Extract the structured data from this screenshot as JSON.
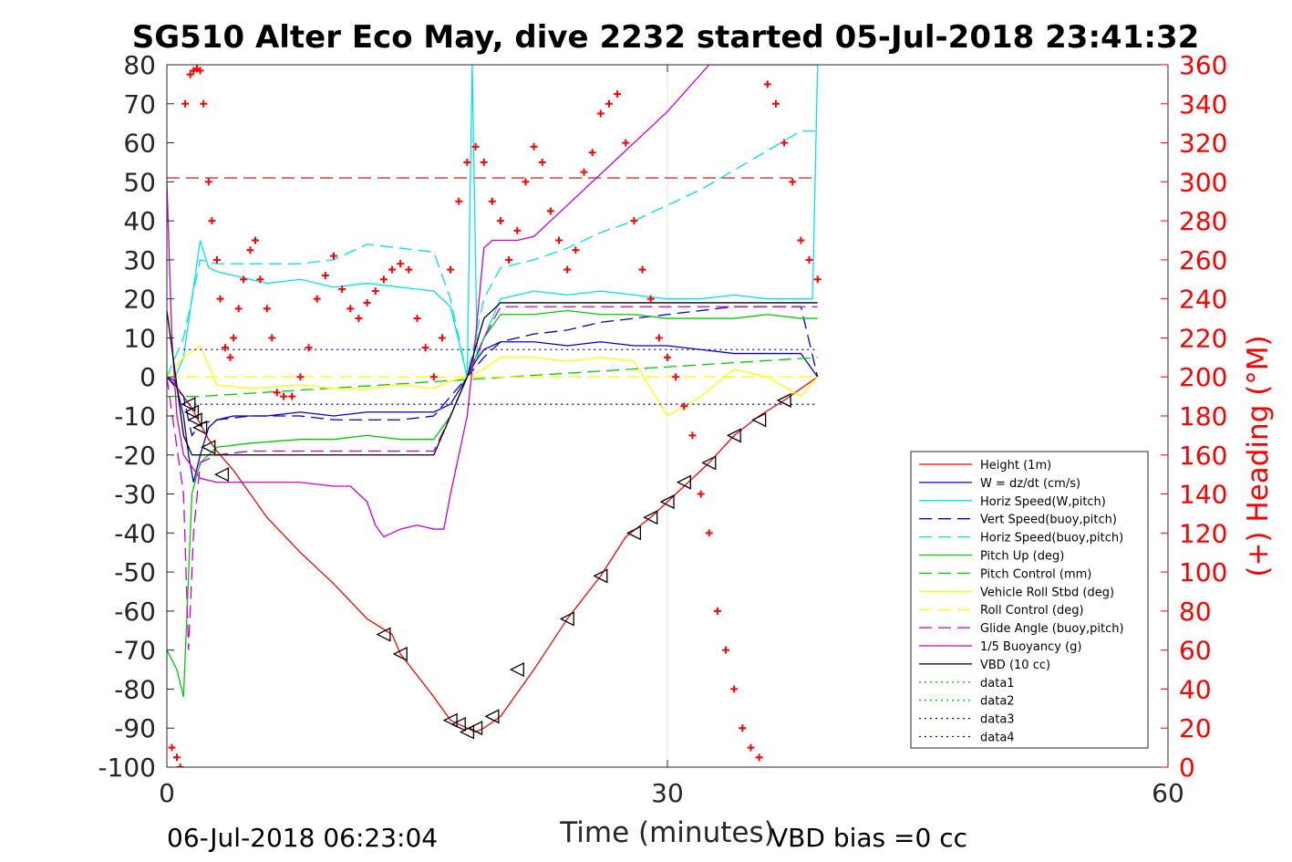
{
  "chart_data": {
    "type": "line",
    "title": "SG510 Alter Eco May, dive 2232 started 05-Jul-2018 23:41:32",
    "xlabel": "Time (minutes)",
    "ylabel_right": "(+) Heading (°M)",
    "xlim": [
      0,
      60
    ],
    "ylim": [
      -100,
      80
    ],
    "ylim_right": [
      0,
      360
    ],
    "x_ticks": [
      "0",
      "30",
      "60"
    ],
    "y_ticks": [
      "80",
      "70",
      "60",
      "50",
      "40",
      "30",
      "20",
      "10",
      "0",
      "-10",
      "-20",
      "-30",
      "-40",
      "-50",
      "-60",
      "-70",
      "-80",
      "-90",
      "-100"
    ],
    "y_ticks_right": [
      "360",
      "340",
      "320",
      "300",
      "280",
      "260",
      "240",
      "220",
      "200",
      "180",
      "160",
      "140",
      "120",
      "100",
      "80",
      "60",
      "40",
      "20",
      "0"
    ],
    "grid": "x-only",
    "legend_position": "bottom-right",
    "footer_left": "06-Jul-2018 06:23:04",
    "footer_right": "VBD bias =0 cc",
    "series": [
      {
        "name": "Height (1m)",
        "color": "#ff0000",
        "style": "solid",
        "x": [
          0,
          0.5,
          1,
          1.5,
          2,
          2.5,
          3,
          4,
          5,
          6,
          8,
          10,
          12,
          13.5,
          14,
          16,
          17,
          17.5,
          18,
          18.5,
          19,
          20,
          21,
          22,
          24,
          26,
          27.5,
          29,
          30,
          31,
          32.5,
          34,
          35.5,
          37,
          39
        ],
        "y": [
          0,
          -2,
          -5,
          -8,
          -12,
          -16,
          -19,
          -24,
          -30,
          -36,
          -45,
          -53,
          -62,
          -66,
          -71,
          -82,
          -88,
          -89,
          -90,
          -91,
          -90,
          -87,
          -81,
          -75,
          -62,
          -51,
          -41,
          -36,
          -32,
          -28,
          -22,
          -15,
          -10,
          -6,
          0
        ]
      },
      {
        "name": "W = dz/dt (cm/s)",
        "color": "#0000cc",
        "style": "solid",
        "x": [
          0,
          0.5,
          1,
          1.3,
          1.6,
          2,
          2.5,
          3,
          4,
          6,
          8,
          10,
          12,
          14,
          16,
          17,
          18,
          18.5,
          19,
          20,
          22,
          24,
          26,
          28,
          30,
          32,
          34,
          36,
          38,
          39
        ],
        "y": [
          0,
          -1,
          -10,
          -20,
          -27,
          -20,
          -13,
          -11,
          -10,
          -10,
          -9,
          -10,
          -9,
          -9,
          -9,
          -7,
          0,
          4,
          7,
          9,
          9,
          8,
          9,
          8,
          8,
          7,
          6,
          6,
          6,
          0
        ]
      },
      {
        "name": "Horiz Speed(W,pitch)",
        "color": "#00e5e5",
        "style": "solid",
        "x": [
          0,
          0.5,
          1,
          1.5,
          2,
          2.5,
          3,
          4,
          6,
          8,
          10,
          12,
          14,
          16,
          17,
          18,
          18.3,
          18.6,
          19,
          20,
          22,
          24,
          26,
          28,
          30,
          32,
          34,
          36,
          38,
          38.7,
          39
        ],
        "y": [
          0,
          0,
          5,
          20,
          35,
          28,
          27,
          26,
          24,
          25,
          23,
          24,
          23,
          22,
          18,
          0,
          80,
          5,
          10,
          20,
          22,
          21,
          22,
          21,
          20,
          20,
          21,
          20,
          20,
          20,
          80
        ]
      },
      {
        "name": "Vert Speed(buoy,pitch)",
        "color": "#0000cc",
        "style": "dashed",
        "x": [
          0,
          1,
          1.5,
          2,
          3,
          5,
          8,
          10,
          12,
          14,
          16,
          17,
          18,
          19,
          20,
          22,
          24,
          26,
          28,
          30,
          32,
          34,
          36,
          38,
          39
        ],
        "y": [
          0,
          -5,
          -15,
          -12,
          -11,
          -10,
          -10,
          -11,
          -11,
          -11,
          -10,
          -5,
          0,
          5,
          9,
          11,
          12,
          14,
          15,
          16,
          17,
          18,
          18,
          18,
          0
        ]
      },
      {
        "name": "Horiz Speed(buoy,pitch)",
        "color": "#00e5e5",
        "style": "dashed",
        "x": [
          0,
          1,
          2,
          3,
          5,
          8,
          10,
          12,
          14,
          16,
          17,
          18,
          19,
          20,
          22,
          24,
          26,
          28,
          30,
          32,
          34,
          36,
          38,
          39
        ],
        "y": [
          0,
          10,
          30,
          29,
          29,
          29,
          30,
          34,
          33,
          32,
          20,
          0,
          20,
          28,
          30,
          33,
          37,
          40,
          44,
          48,
          53,
          58,
          63,
          63
        ]
      },
      {
        "name": "Pitch Up (deg)",
        "color": "#00cc00",
        "style": "solid",
        "x": [
          0,
          0.6,
          1,
          1.5,
          2,
          3,
          5,
          8,
          10,
          12,
          14,
          16,
          17,
          18,
          19,
          20,
          22,
          24,
          26,
          28,
          30,
          32,
          34,
          36,
          38,
          39
        ],
        "y": [
          -70,
          -75,
          -82,
          -30,
          -22,
          -18,
          -17,
          -16,
          -16,
          -15,
          -16,
          -16,
          -10,
          0,
          10,
          16,
          16,
          17,
          16,
          16,
          15,
          15,
          15,
          16,
          15,
          15
        ]
      },
      {
        "name": "Pitch Control (mm)",
        "color": "#00cc00",
        "style": "dashed",
        "x": [
          0,
          1.5,
          2,
          39
        ],
        "y": [
          -5,
          -5,
          -5,
          5
        ]
      },
      {
        "name": "Vehicle Roll Stbd (deg)",
        "color": "#ffff00",
        "style": "solid",
        "x": [
          0,
          1,
          2,
          3,
          5,
          8,
          10,
          12,
          14,
          16,
          17,
          18,
          19,
          20,
          22,
          24,
          26,
          28,
          30,
          32,
          34,
          36,
          38,
          39
        ],
        "y": [
          0,
          5,
          8,
          -2,
          -3,
          -2,
          -3,
          -3,
          -2,
          -3,
          -1,
          0,
          2,
          5,
          5,
          4,
          5,
          4,
          -10,
          -5,
          2,
          0,
          -5,
          0
        ]
      },
      {
        "name": "Roll Control (deg)",
        "color": "#ffff00",
        "style": "dashed",
        "x": [
          0,
          39
        ],
        "y": [
          0,
          0
        ]
      },
      {
        "name": "Glide Angle (buoy,pitch)",
        "color": "#cc00cc",
        "style": "dashed",
        "x": [
          0,
          1,
          1.3,
          1.6,
          2,
          3,
          5,
          8,
          10,
          12,
          14,
          16,
          17,
          18,
          19,
          20,
          22,
          24,
          26,
          28,
          30,
          32,
          34,
          36,
          38,
          39
        ],
        "y": [
          0,
          -30,
          -70,
          -40,
          -22,
          -20,
          -19,
          -19,
          -19,
          -19,
          -19,
          -19,
          -10,
          0,
          10,
          18,
          18,
          18,
          18,
          18,
          18,
          18,
          18,
          18,
          18,
          18
        ]
      },
      {
        "name": "1/5 Buoyancy (g)",
        "color": "#cc00cc",
        "style": "solid",
        "x": [
          0,
          0.3,
          0.6,
          1,
          2,
          3,
          5,
          8,
          10,
          11,
          12,
          12.5,
          13,
          14,
          15,
          16,
          16.6,
          17,
          18,
          18.5,
          19,
          19.5,
          21,
          22,
          25,
          30,
          32.5,
          39
        ],
        "y": [
          50,
          10,
          -10,
          -20,
          -26,
          -27,
          -27,
          -27,
          -28,
          -28,
          -32,
          -38,
          -41,
          -39,
          -38,
          -39,
          -39,
          -30,
          -10,
          10,
          33,
          35,
          35,
          36,
          48,
          68,
          80,
          80
        ]
      },
      {
        "name": "VBD (10 cc)",
        "color": "#000000",
        "style": "solid",
        "x": [
          0,
          1,
          1.5,
          2,
          3,
          5,
          8,
          10,
          12,
          14,
          16,
          17,
          18,
          19,
          20,
          22,
          24,
          26,
          28,
          30,
          32,
          34,
          36,
          38,
          39
        ],
        "y": [
          17,
          -15,
          -20,
          -20,
          -20,
          -20,
          -20,
          -20,
          -20,
          -20,
          -20,
          -10,
          0,
          15,
          19,
          19,
          19,
          19,
          19,
          19,
          19,
          19,
          19,
          19,
          19
        ]
      },
      {
        "name": "data1",
        "color": "#00cc00",
        "style": "dotted",
        "x": [],
        "y": []
      },
      {
        "name": "data2",
        "color": "#00cc00",
        "style": "dotted",
        "x": [],
        "y": []
      },
      {
        "name": "data3",
        "color": "#0000cc",
        "style": "dotted",
        "x": [
          1,
          39
        ],
        "y": [
          7,
          7
        ]
      },
      {
        "name": "data4",
        "color": "#0000cc",
        "style": "dotted",
        "x": [
          1,
          39
        ],
        "y": [
          -7,
          -7
        ]
      }
    ],
    "extra_lines": [
      {
        "color": "#cc0000",
        "style": "dashed",
        "x": [
          0,
          39
        ],
        "y": [
          51,
          51
        ]
      }
    ],
    "heading_points": {
      "color": "#ff0000",
      "marker": "+",
      "x": [
        0.3,
        0.6,
        0.8,
        1.1,
        1.4,
        1.6,
        1.8,
        2.0,
        2.2,
        2.5,
        2.7,
        3,
        3.2,
        3.5,
        3.8,
        4,
        4.3,
        4.6,
        5,
        5.3,
        5.6,
        6,
        6.3,
        6.6,
        7,
        7.5,
        8,
        8.5,
        9,
        9.5,
        10,
        10.5,
        11,
        11.5,
        12,
        12.5,
        13,
        13.5,
        14,
        14.5,
        15,
        15.5,
        16,
        16.5,
        17,
        17.5,
        18,
        18.5,
        19,
        19.5,
        20,
        20.5,
        21,
        21.5,
        22,
        22.5,
        23,
        23.5,
        24,
        24.5,
        25,
        25.5,
        26,
        26.5,
        27,
        27.5,
        28,
        28.5,
        29,
        29.5,
        30,
        30.5,
        31,
        31.5,
        32,
        32.5,
        33,
        33.5,
        34,
        34.5,
        35,
        35.5,
        36,
        36.5,
        37,
        37.5,
        38,
        38.5,
        39
      ],
      "y": [
        10,
        5,
        0,
        340,
        355,
        357,
        358,
        357,
        340,
        300,
        280,
        260,
        240,
        215,
        210,
        220,
        235,
        250,
        265,
        270,
        250,
        235,
        220,
        192,
        190,
        190,
        200,
        215,
        240,
        252,
        262,
        245,
        235,
        230,
        238,
        244,
        250,
        255,
        258,
        255,
        230,
        215,
        200,
        220,
        255,
        290,
        310,
        318,
        310,
        290,
        280,
        260,
        275,
        300,
        318,
        310,
        285,
        270,
        255,
        265,
        305,
        315,
        335,
        340,
        345,
        320,
        280,
        255,
        240,
        220,
        210,
        200,
        185,
        170,
        140,
        120,
        80,
        60,
        40,
        20,
        10,
        5,
        350,
        340,
        320,
        300,
        270,
        260,
        250
      ]
    },
    "direction_markers": {
      "color": "#000000",
      "marker": "triangle-left",
      "x": [
        1.3,
        1.5,
        1.7,
        2.0,
        2.5,
        3.3,
        13.0,
        14.0,
        17.0,
        17.5,
        18.0,
        18.5,
        19.5,
        21.0,
        24.0,
        26.0,
        28.0,
        29.0,
        30.0,
        31.0,
        32.5,
        34.0,
        35.5,
        37.0
      ],
      "y": [
        -7,
        -9,
        -11,
        -13,
        -18,
        -25,
        -66,
        -71,
        -88,
        -89,
        -91,
        -90,
        -87,
        -75,
        -62,
        -51,
        -40,
        -36,
        -32,
        -27,
        -22,
        -15,
        -11,
        -6
      ]
    }
  }
}
